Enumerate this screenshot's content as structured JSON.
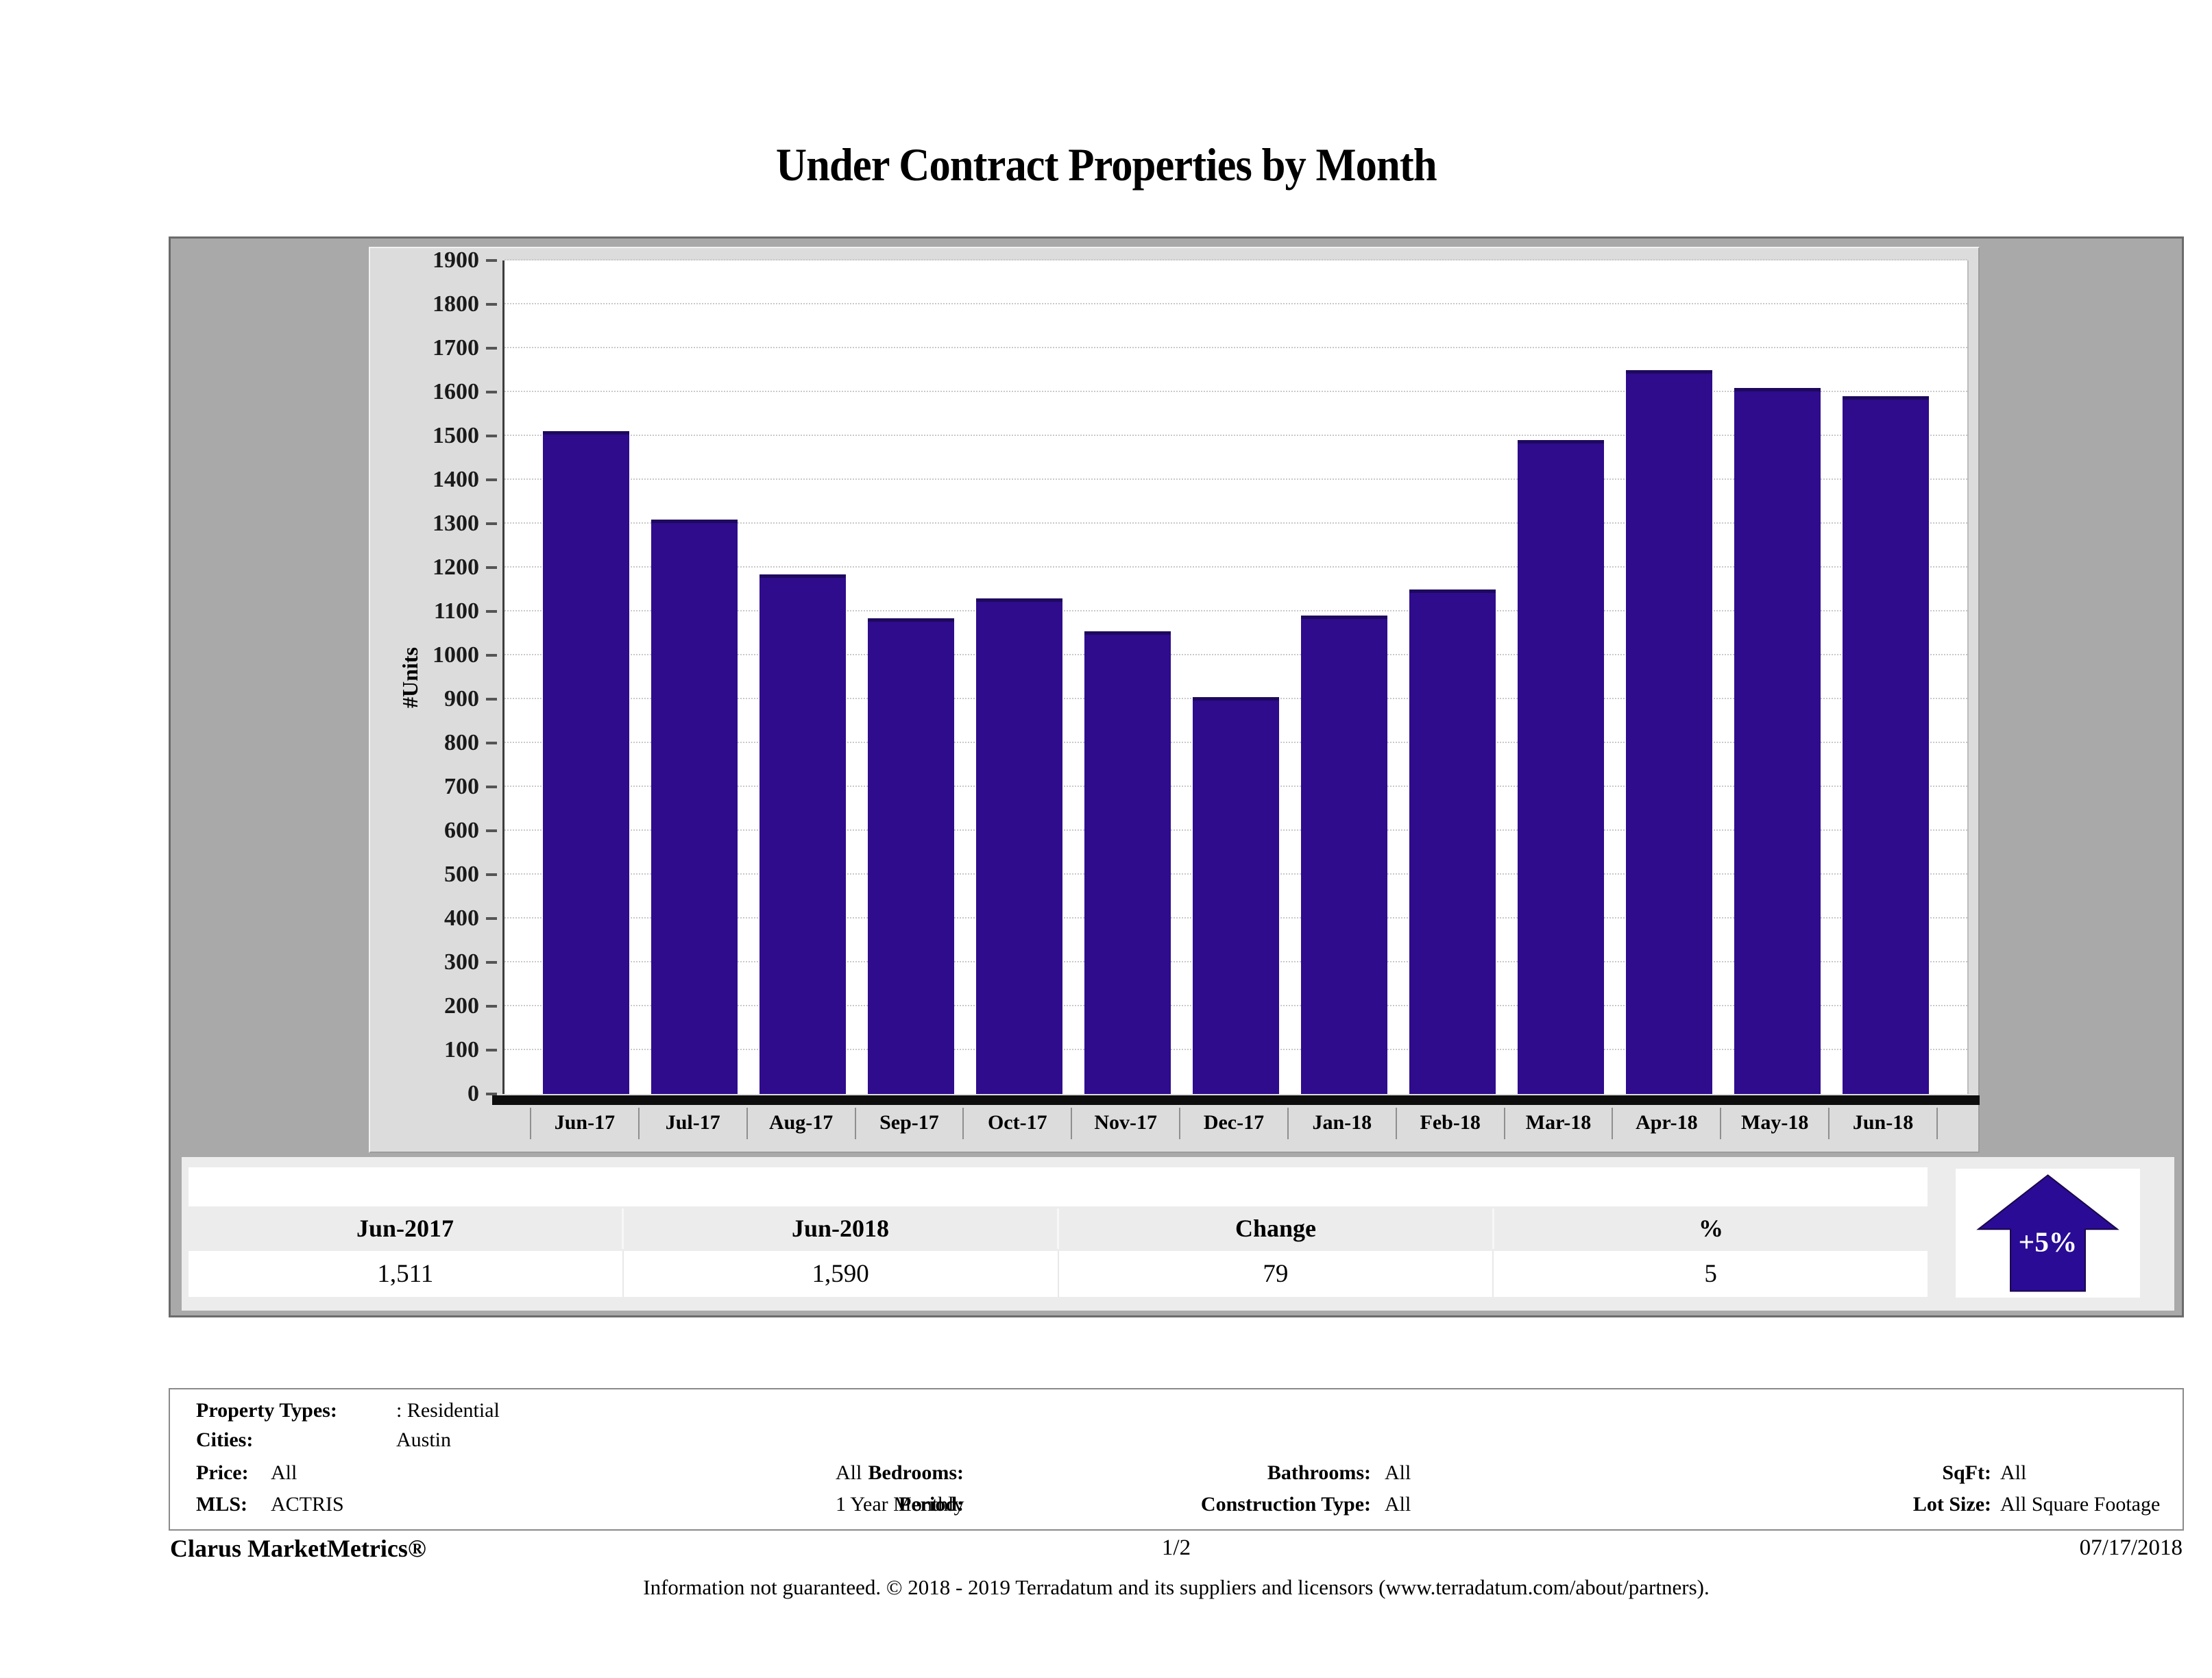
{
  "title": "Under Contract Properties by Month",
  "chart_data": {
    "type": "bar",
    "title": "Under Contract Properties by Month",
    "categories": [
      "Jun-17",
      "Jul-17",
      "Aug-17",
      "Sep-17",
      "Oct-17",
      "Nov-17",
      "Dec-17",
      "Jan-18",
      "Feb-18",
      "Mar-18",
      "Apr-18",
      "May-18",
      "Jun-18"
    ],
    "values": [
      1511,
      1310,
      1185,
      1085,
      1130,
      1055,
      905,
      1090,
      1150,
      1490,
      1650,
      1610,
      1590
    ],
    "xlabel": "",
    "ylabel": "#Units",
    "ylim": [
      0,
      1900
    ],
    "ytick_step": 100,
    "grid": "dotted-horizontal",
    "legend": "none",
    "bar_color": "#2e0c8c"
  },
  "summary": {
    "columns": [
      "Jun-2017",
      "Jun-2018",
      "Change",
      "%"
    ],
    "values": [
      "1,511",
      "1,590",
      "79",
      "5"
    ],
    "badge": {
      "label": "+5%",
      "direction": "up",
      "color": "#2a0b96"
    }
  },
  "filters": {
    "property_types_label": "Property Types:",
    "property_types_value": ": Residential",
    "cities_label": "Cities:",
    "cities_value": "Austin",
    "price_label": "Price:",
    "price_value": "All",
    "bedrooms_label": "Bedrooms:",
    "bedrooms_value": "All",
    "bathrooms_label": "Bathrooms:",
    "bathrooms_value": "All",
    "sqft_label": "SqFt:",
    "sqft_value": "All",
    "mls_label": "MLS:",
    "mls_value": "ACTRIS",
    "period_label": "Period:",
    "period_value": "1 Year Monthly",
    "construction_label": "Construction Type:",
    "construction_value": "All",
    "lot_label": "Lot Size:",
    "lot_value": "All Square Footage"
  },
  "footer": {
    "brand": "Clarus MarketMetrics®",
    "page": "1/2",
    "date": "07/17/2018",
    "disclaimer": "Information not guaranteed. © 2018 - 2019 Terradatum and its suppliers and licensors (www.terradatum.com/about/partners)."
  }
}
